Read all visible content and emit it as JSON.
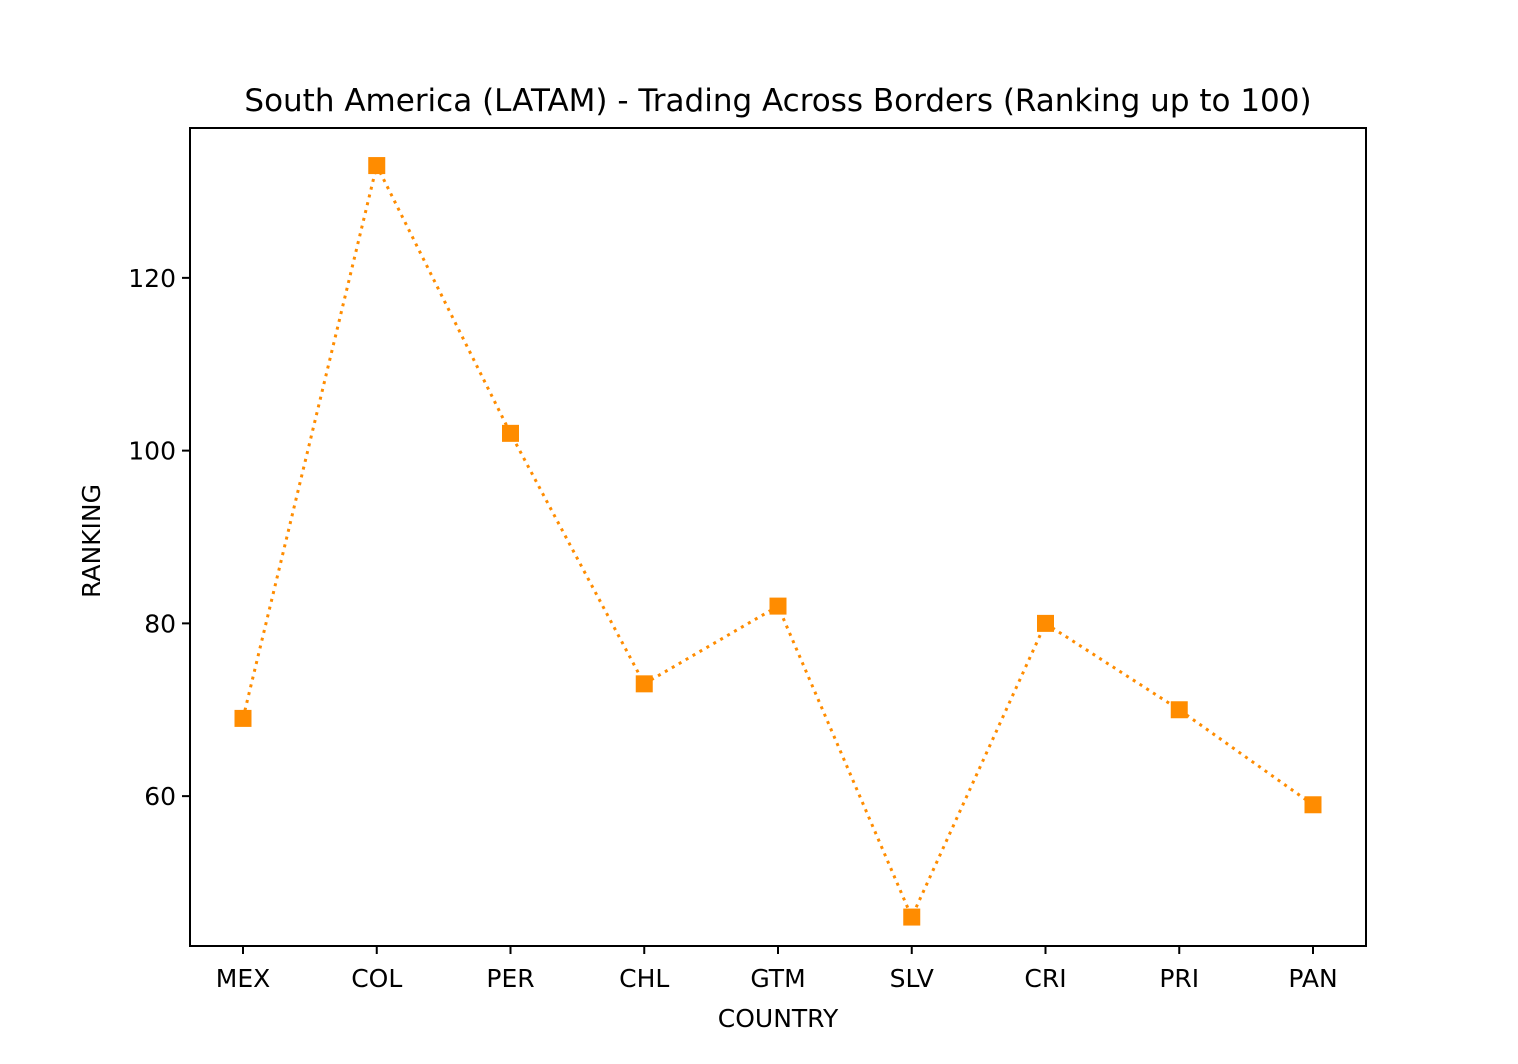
{
  "chart_data": {
    "type": "line",
    "title": "South America (LATAM) - Trading Across Borders (Ranking up to 100)",
    "xlabel": "COUNTRY",
    "ylabel": "RANKING",
    "categories": [
      "MEX",
      "COL",
      "PER",
      "CHL",
      "GTM",
      "SLV",
      "CRI",
      "PRI",
      "PAN"
    ],
    "series": [
      {
        "values": [
          69,
          133,
          102,
          73,
          82,
          46,
          80,
          70,
          59
        ],
        "color": "#ff8c00",
        "line_style": "dotted",
        "marker": "square"
      }
    ],
    "ylim": [
      42.65,
      137.35
    ],
    "yticks": [
      60,
      80,
      100,
      120
    ],
    "grid": false,
    "legend": "none"
  }
}
